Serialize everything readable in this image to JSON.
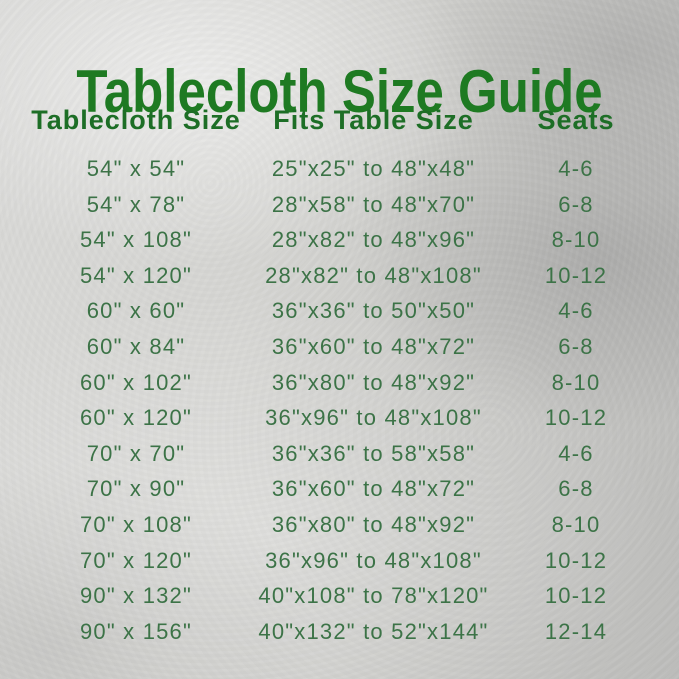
{
  "title": "Tablecloth Size Guide",
  "colors": {
    "title_green": "#1e7a22",
    "header_green": "#1d6e26",
    "row_green": "#3c7347",
    "background_silver": "#cfcfcc"
  },
  "table": {
    "headers": [
      "Tablecloth Size",
      "Fits Table Size",
      "Seats"
    ],
    "rows": [
      [
        "54\" x 54\"",
        "25\"x25\" to 48\"x48\"",
        "4-6"
      ],
      [
        "54\" x 78\"",
        "28\"x58\" to 48\"x70\"",
        "6-8"
      ],
      [
        "54\" x 108\"",
        "28\"x82\" to 48\"x96\"",
        "8-10"
      ],
      [
        "54\" x 120\"",
        "28\"x82\" to 48\"x108\"",
        "10-12"
      ],
      [
        "60\" x 60\"",
        "36\"x36\" to 50\"x50\"",
        "4-6"
      ],
      [
        "60\" x 84\"",
        "36\"x60\" to 48\"x72\"",
        "6-8"
      ],
      [
        "60\" x 102\"",
        "36\"x80\" to 48\"x92\"",
        "8-10"
      ],
      [
        "60\" x 120\"",
        "36\"x96\" to 48\"x108\"",
        "10-12"
      ],
      [
        "70\" x 70\"",
        "36\"x36\" to 58\"x58\"",
        "4-6"
      ],
      [
        "70\" x 90\"",
        "36\"x60\" to 48\"x72\"",
        "6-8"
      ],
      [
        "70\" x 108\"",
        "36\"x80\" to 48\"x92\"",
        "8-10"
      ],
      [
        "70\" x 120\"",
        "36\"x96\" to 48\"x108\"",
        "10-12"
      ],
      [
        "90\" x 132\"",
        "40\"x108\" to 78\"x120\"",
        "10-12"
      ],
      [
        "90\" x 156\"",
        "40\"x132\" to 52\"x144\"",
        "12-14"
      ]
    ]
  }
}
